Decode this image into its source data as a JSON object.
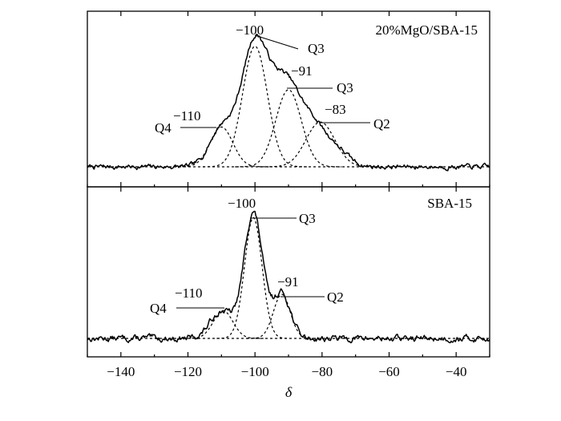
{
  "chart_data": {
    "type": "line",
    "xlabel": "δ",
    "xlim": [
      -150,
      -30
    ],
    "x_ticks": [
      -140,
      -120,
      -100,
      -80,
      -60,
      -40
    ],
    "x_tick_labels": [
      "−140",
      "−120",
      "−100",
      "−80",
      "−60",
      "−40"
    ],
    "panels": [
      {
        "label": "20%MgO/SBA-15",
        "baseline": 0.0,
        "ylim": [
          -0.06,
          1.15
        ],
        "measured": {
          "noise_seed": 7,
          "noise_amp": 0.015,
          "peaks": [
            {
              "center": -110,
              "height": 0.3,
              "sigma": 3.6
            },
            {
              "center": -100,
              "height": 1.0,
              "sigma": 4.1
            },
            {
              "center": -91,
              "height": 0.6,
              "sigma": 4.0
            },
            {
              "center": -83,
              "height": 0.34,
              "sigma": 4.4
            },
            {
              "center": -75,
              "height": 0.1,
              "sigma": 3.5
            }
          ]
        },
        "components": [
          {
            "center": -110,
            "height": 0.32,
            "sigma": 3.4
          },
          {
            "center": -100,
            "height": 0.97,
            "sigma": 3.7
          },
          {
            "center": -90,
            "height": 0.62,
            "sigma": 3.8
          },
          {
            "center": -80.5,
            "height": 0.36,
            "sigma": 4.3
          }
        ],
        "annotations": [
          {
            "shift": "−100",
            "species": "Q3",
            "x": -100,
            "y": 1.0
          },
          {
            "shift": "−91",
            "species": "Q3",
            "x": -90,
            "y": 0.62
          },
          {
            "shift": "−83",
            "species": "Q2",
            "x": -80.5,
            "y": 0.36
          },
          {
            "shift": "−110",
            "species": "Q4",
            "x": -108,
            "y": 0.32
          }
        ]
      },
      {
        "label": "SBA-15",
        "baseline": 0.0,
        "ylim": [
          -0.06,
          1.15
        ],
        "measured": {
          "noise_seed": 13,
          "noise_amp": 0.02,
          "peaks": [
            {
              "center": -110,
              "height": 0.22,
              "sigma": 3.3
            },
            {
              "center": -100.5,
              "height": 1.0,
              "sigma": 2.8
            },
            {
              "center": -92,
              "height": 0.36,
              "sigma": 2.6
            }
          ]
        },
        "components": [
          {
            "center": -109.5,
            "height": 0.22,
            "sigma": 2.9
          },
          {
            "center": -100.5,
            "height": 0.96,
            "sigma": 2.6
          },
          {
            "center": -92,
            "height": 0.35,
            "sigma": 2.5
          }
        ],
        "annotations": [
          {
            "shift": "−100",
            "species": "Q3",
            "x": -100.5,
            "y": 0.98
          },
          {
            "shift": "−91",
            "species": "Q2",
            "x": -92,
            "y": 0.35
          },
          {
            "shift": "−110",
            "species": "Q4",
            "x": -107.5,
            "y": 0.22
          }
        ]
      }
    ]
  }
}
